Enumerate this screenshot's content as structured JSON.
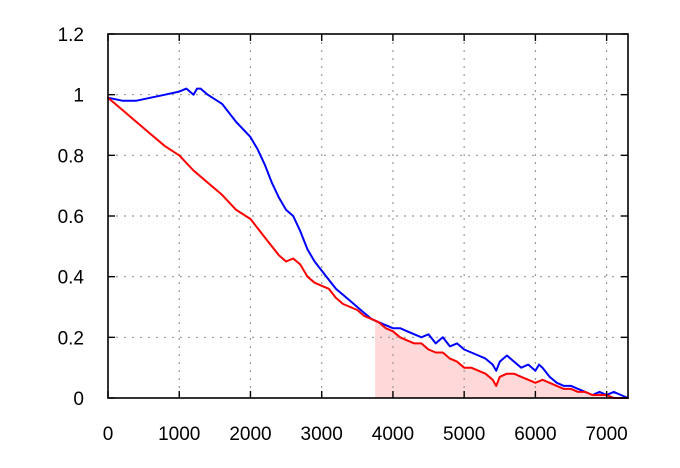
{
  "chart_data": {
    "type": "line",
    "title": "",
    "xlabel": "",
    "ylabel": "",
    "xlim": [
      0,
      7300
    ],
    "ylim": [
      0,
      1.2
    ],
    "grid": true,
    "x_ticks": [
      0,
      1000,
      2000,
      3000,
      4000,
      5000,
      6000,
      7000
    ],
    "y_ticks": [
      0,
      0.2,
      0.4,
      0.6,
      0.8,
      1,
      1.2
    ],
    "x_tick_labels": [
      "0",
      "1000",
      "2000",
      "3000",
      "4000",
      "5000",
      "6000",
      "7000"
    ],
    "y_tick_labels": [
      "0",
      "0.2",
      "0.4",
      "0.6",
      "0.8",
      "1",
      "1.2"
    ],
    "shaded_region": {
      "color": "#ffd9d9",
      "x_start": 3750,
      "bounded_by_series": 1
    },
    "series": [
      {
        "color": "#0000ff",
        "x": [
          0,
          200,
          400,
          600,
          800,
          1000,
          1100,
          1200,
          1250,
          1300,
          1400,
          1600,
          1800,
          2000,
          2100,
          2200,
          2300,
          2400,
          2500,
          2600,
          2700,
          2800,
          2900,
          3000,
          3100,
          3200,
          3300,
          3400,
          3500,
          3600,
          3700,
          3800,
          3900,
          4000,
          4100,
          4200,
          4300,
          4400,
          4500,
          4600,
          4700,
          4800,
          4900,
          5000,
          5100,
          5200,
          5300,
          5400,
          5450,
          5500,
          5600,
          5700,
          5800,
          5900,
          6000,
          6050,
          6100,
          6200,
          6300,
          6400,
          6500,
          6600,
          6700,
          6800,
          6900,
          7000,
          7100,
          7200,
          7300
        ],
        "y": [
          0.99,
          0.98,
          0.98,
          0.99,
          1.0,
          1.01,
          1.02,
          1.0,
          1.02,
          1.02,
          1.0,
          0.97,
          0.91,
          0.86,
          0.82,
          0.77,
          0.71,
          0.66,
          0.62,
          0.6,
          0.55,
          0.49,
          0.45,
          0.42,
          0.39,
          0.36,
          0.34,
          0.32,
          0.3,
          0.28,
          0.26,
          0.25,
          0.24,
          0.23,
          0.23,
          0.22,
          0.21,
          0.2,
          0.21,
          0.18,
          0.2,
          0.17,
          0.18,
          0.16,
          0.15,
          0.14,
          0.13,
          0.11,
          0.09,
          0.12,
          0.14,
          0.12,
          0.1,
          0.11,
          0.09,
          0.11,
          0.1,
          0.07,
          0.05,
          0.04,
          0.04,
          0.03,
          0.02,
          0.01,
          0.02,
          0.01,
          0.02,
          0.01,
          0.0
        ]
      },
      {
        "color": "#ff0000",
        "x": [
          0,
          200,
          400,
          600,
          800,
          1000,
          1200,
          1400,
          1600,
          1800,
          2000,
          2100,
          2200,
          2300,
          2400,
          2500,
          2600,
          2700,
          2800,
          2900,
          3000,
          3100,
          3200,
          3300,
          3400,
          3500,
          3600,
          3700,
          3800,
          3900,
          4000,
          4100,
          4200,
          4300,
          4400,
          4500,
          4600,
          4700,
          4800,
          4900,
          5000,
          5100,
          5200,
          5300,
          5400,
          5450,
          5500,
          5600,
          5700,
          5800,
          5900,
          6000,
          6100,
          6200,
          6300,
          6400,
          6500,
          6600,
          6700,
          6800,
          6900,
          7000,
          7100,
          7200,
          7300
        ],
        "y": [
          0.99,
          0.95,
          0.91,
          0.87,
          0.83,
          0.8,
          0.75,
          0.71,
          0.67,
          0.62,
          0.59,
          0.56,
          0.53,
          0.5,
          0.47,
          0.45,
          0.46,
          0.44,
          0.4,
          0.38,
          0.37,
          0.36,
          0.33,
          0.31,
          0.3,
          0.29,
          0.27,
          0.26,
          0.25,
          0.23,
          0.22,
          0.2,
          0.19,
          0.18,
          0.18,
          0.16,
          0.15,
          0.15,
          0.13,
          0.12,
          0.1,
          0.1,
          0.09,
          0.08,
          0.06,
          0.04,
          0.07,
          0.08,
          0.08,
          0.07,
          0.06,
          0.05,
          0.06,
          0.05,
          0.04,
          0.03,
          0.03,
          0.02,
          0.02,
          0.01,
          0.01,
          0.01,
          0.0,
          0.0,
          0.0
        ]
      }
    ]
  }
}
